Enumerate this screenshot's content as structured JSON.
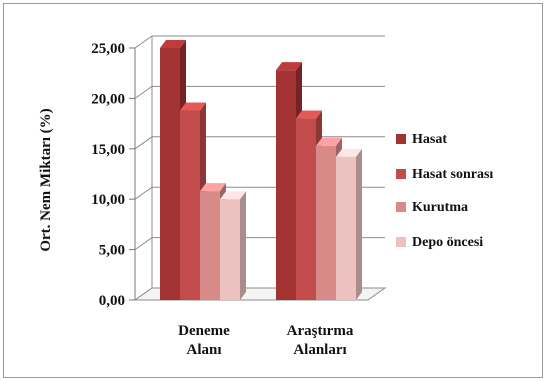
{
  "chart_data": {
    "type": "bar",
    "style": "3d-clustered-column",
    "categories": [
      "Deneme\nAlanı",
      "Araştırma\nAlanları"
    ],
    "series": [
      {
        "name": "Hasat",
        "values": [
          25.0,
          22.8
        ],
        "color": "#A33233"
      },
      {
        "name": "Hasat sonrası",
        "values": [
          18.8,
          18.0
        ],
        "color": "#C24B4B"
      },
      {
        "name": "Kurutma",
        "values": [
          10.8,
          15.3
        ],
        "color": "#D88A89"
      },
      {
        "name": "Depo öncesi",
        "values": [
          10.0,
          14.2
        ],
        "color": "#ECC2C0"
      }
    ],
    "ylabel": "Ort. Nem Miktarı (%)",
    "ylim": [
      0,
      25
    ],
    "yticks": [
      "0,00",
      "5,00",
      "10,00",
      "15,00",
      "20,00",
      "25,00"
    ],
    "grid": true,
    "legend_position": "right"
  }
}
